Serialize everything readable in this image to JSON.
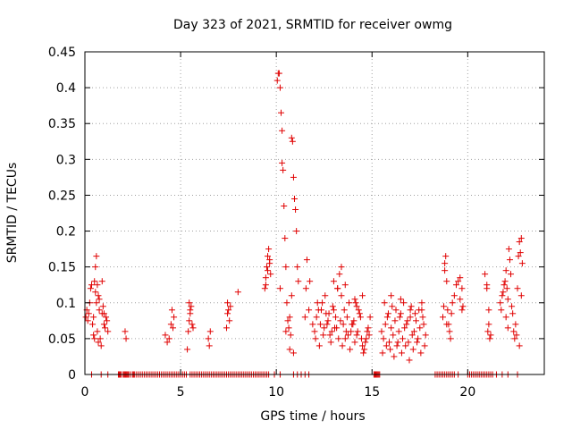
{
  "chart_data": {
    "type": "scatter",
    "title": "Day 323 of 2021, SRMTID for receiver owmg",
    "xlabel": "GPS time / hours",
    "ylabel": "SRMTID / TECUs",
    "xlim": [
      0,
      24
    ],
    "ylim": [
      0,
      0.45
    ],
    "xticks": [
      0,
      5,
      10,
      15,
      20
    ],
    "xtick_labels": [
      "0",
      "5",
      "10",
      "15",
      "20"
    ],
    "yticks": [
      0,
      0.05,
      0.1,
      0.15,
      0.2,
      0.25,
      0.3,
      0.35,
      0.4,
      0.45
    ],
    "ytick_labels": [
      "0",
      "0.05",
      "0.1",
      "0.15",
      "0.2",
      "0.25",
      "0.3",
      "0.35",
      "0.4",
      "0.45"
    ],
    "grid": true,
    "marker": "plus",
    "color": "#e00000",
    "series": [
      {
        "name": "SRMTID",
        "x": [
          0.05,
          0.1,
          0.15,
          0.2,
          0.25,
          0.3,
          0.35,
          0.4,
          0.45,
          0.5,
          0.5,
          0.55,
          0.6,
          0.6,
          0.65,
          0.7,
          0.75,
          0.8,
          0.85,
          0.9,
          0.95,
          1.0,
          1.05,
          1.1,
          1.15,
          1.2,
          0.55,
          0.65,
          0.75,
          0.45,
          0.7,
          0.9,
          1.0,
          2.1,
          2.15,
          4.2,
          4.3,
          4.4,
          4.5,
          4.55,
          4.6,
          4.65,
          5.35,
          5.4,
          5.45,
          5.5,
          5.55,
          5.6,
          5.65,
          5.45,
          5.5,
          6.45,
          6.5,
          6.55,
          7.4,
          7.45,
          7.5,
          7.55,
          7.6,
          7.45,
          8.0,
          9.4,
          9.45,
          9.5,
          9.55,
          9.6,
          9.65,
          9.7,
          9.45,
          9.55,
          9.65,
          10.05,
          10.1,
          10.15,
          10.2,
          10.25,
          10.3,
          10.35,
          10.4,
          10.45,
          10.5,
          10.55,
          10.6,
          10.65,
          10.7,
          10.75,
          10.8,
          10.85,
          10.9,
          10.95,
          11.0,
          11.05,
          11.1,
          11.15,
          10.3,
          10.5,
          10.7,
          10.9,
          10.2,
          10.8,
          11.5,
          11.55,
          11.6,
          11.7,
          11.75,
          11.9,
          12.0,
          12.1,
          12.2,
          12.3,
          12.4,
          12.5,
          12.6,
          12.7,
          12.8,
          12.9,
          13.0,
          13.1,
          13.2,
          13.3,
          13.4,
          13.5,
          13.6,
          13.7,
          13.8,
          13.9,
          14.0,
          14.1,
          14.2,
          14.3,
          14.4,
          14.5,
          14.6,
          14.7,
          14.8,
          14.9,
          12.05,
          12.25,
          12.45,
          12.65,
          12.85,
          13.05,
          13.25,
          13.45,
          13.65,
          13.85,
          14.05,
          14.25,
          14.45,
          14.65,
          14.85,
          12.15,
          12.35,
          12.55,
          12.75,
          12.95,
          13.15,
          13.35,
          13.55,
          13.75,
          13.95,
          14.15,
          14.35,
          14.55,
          14.75,
          13.0,
          13.2,
          13.4,
          13.6,
          14.1,
          14.2,
          14.5,
          15.5,
          15.6,
          15.7,
          15.8,
          15.9,
          16.0,
          16.1,
          16.2,
          16.3,
          16.4,
          16.5,
          16.6,
          16.7,
          16.8,
          16.9,
          17.0,
          17.1,
          17.2,
          17.3,
          17.4,
          17.5,
          17.6,
          17.7,
          17.8,
          15.55,
          15.75,
          15.95,
          16.15,
          16.35,
          16.55,
          16.75,
          16.95,
          17.15,
          17.35,
          17.55,
          17.75,
          15.65,
          15.85,
          16.05,
          16.25,
          16.45,
          16.65,
          16.85,
          17.05,
          17.25,
          17.45,
          17.65,
          16.0,
          16.5,
          17.0,
          17.6,
          18.7,
          18.75,
          18.8,
          18.85,
          18.9,
          18.95,
          19.0,
          19.05,
          19.1,
          19.15,
          19.2,
          19.3,
          19.4,
          19.5,
          19.6,
          19.7,
          19.75,
          18.8,
          18.9,
          19.6,
          19.7,
          20.9,
          21.0,
          21.05,
          21.1,
          21.15,
          21.2,
          21.0,
          21.1,
          21.7,
          21.75,
          21.8,
          21.85,
          21.9,
          21.95,
          22.0,
          22.05,
          22.1,
          22.15,
          22.2,
          22.25,
          22.3,
          22.35,
          22.4,
          22.45,
          22.5,
          22.55,
          22.6,
          22.65,
          22.7,
          22.75,
          22.8,
          22.85,
          22.0,
          22.1,
          22.7,
          22.8
        ],
        "y": [
          0.08,
          0.09,
          0.075,
          0.085,
          0.1,
          0.12,
          0.125,
          0.07,
          0.08,
          0.05,
          0.13,
          0.15,
          0.165,
          0.1,
          0.06,
          0.11,
          0.09,
          0.05,
          0.04,
          0.085,
          0.095,
          0.07,
          0.065,
          0.08,
          0.075,
          0.06,
          0.115,
          0.125,
          0.105,
          0.055,
          0.045,
          0.13,
          0.085,
          0.06,
          0.05,
          0.055,
          0.045,
          0.05,
          0.07,
          0.09,
          0.065,
          0.08,
          0.035,
          0.06,
          0.075,
          0.085,
          0.095,
          0.07,
          0.065,
          0.1,
          0.09,
          0.05,
          0.04,
          0.06,
          0.065,
          0.085,
          0.09,
          0.075,
          0.095,
          0.1,
          0.115,
          0.12,
          0.135,
          0.15,
          0.165,
          0.175,
          0.155,
          0.14,
          0.125,
          0.145,
          0.16,
          0.41,
          0.42,
          0.42,
          0.4,
          0.365,
          0.34,
          0.285,
          0.235,
          0.19,
          0.15,
          0.1,
          0.075,
          0.065,
          0.08,
          0.055,
          0.33,
          0.325,
          0.275,
          0.245,
          0.23,
          0.2,
          0.15,
          0.13,
          0.295,
          0.06,
          0.035,
          0.03,
          0.12,
          0.11,
          0.08,
          0.12,
          0.16,
          0.09,
          0.13,
          0.07,
          0.06,
          0.08,
          0.09,
          0.07,
          0.1,
          0.065,
          0.085,
          0.075,
          0.055,
          0.06,
          0.09,
          0.08,
          0.12,
          0.14,
          0.11,
          0.07,
          0.05,
          0.08,
          0.1,
          0.06,
          0.07,
          0.045,
          0.055,
          0.09,
          0.08,
          0.04,
          0.035,
          0.05,
          0.065,
          0.08,
          0.05,
          0.04,
          0.055,
          0.07,
          0.045,
          0.065,
          0.05,
          0.04,
          0.06,
          0.035,
          0.075,
          0.06,
          0.05,
          0.045,
          0.055,
          0.1,
          0.09,
          0.11,
          0.085,
          0.095,
          0.065,
          0.075,
          0.09,
          0.055,
          0.07,
          0.1,
          0.085,
          0.03,
          0.06,
          0.13,
          0.12,
          0.15,
          0.125,
          0.105,
          0.095,
          0.11,
          0.06,
          0.05,
          0.07,
          0.08,
          0.045,
          0.065,
          0.055,
          0.075,
          0.04,
          0.06,
          0.085,
          0.05,
          0.065,
          0.07,
          0.045,
          0.08,
          0.055,
          0.06,
          0.075,
          0.05,
          0.065,
          0.09,
          0.07,
          0.055,
          0.03,
          0.04,
          0.035,
          0.025,
          0.045,
          0.03,
          0.04,
          0.02,
          0.035,
          0.045,
          0.03,
          0.04,
          0.1,
          0.085,
          0.095,
          0.09,
          0.08,
          0.1,
          0.075,
          0.095,
          0.085,
          0.09,
          0.08,
          0.11,
          0.105,
          0.09,
          0.1,
          0.08,
          0.095,
          0.155,
          0.165,
          0.13,
          0.09,
          0.07,
          0.06,
          0.05,
          0.085,
          0.1,
          0.11,
          0.125,
          0.13,
          0.135,
          0.12,
          0.095,
          0.145,
          0.07,
          0.105,
          0.09,
          0.14,
          0.12,
          0.06,
          0.07,
          0.05,
          0.055,
          0.125,
          0.09,
          0.1,
          0.09,
          0.11,
          0.115,
          0.125,
          0.13,
          0.145,
          0.12,
          0.105,
          0.175,
          0.16,
          0.14,
          0.095,
          0.085,
          0.06,
          0.05,
          0.07,
          0.055,
          0.12,
          0.165,
          0.185,
          0.17,
          0.19,
          0.155,
          0.08,
          0.065,
          0.04,
          0.11
        ],
        "zeros_x": [
          0.35,
          0.85,
          1.2,
          1.75,
          1.8,
          1.85,
          1.9,
          2.0,
          2.05,
          2.1,
          2.15,
          2.2,
          2.25,
          2.3,
          2.4,
          2.5,
          2.55,
          2.6,
          2.7,
          2.8,
          2.9,
          3.0,
          3.1,
          3.2,
          3.3,
          3.4,
          3.5,
          3.6,
          3.7,
          3.8,
          3.9,
          4.0,
          4.1,
          4.2,
          4.3,
          4.4,
          4.5,
          4.6,
          4.7,
          4.8,
          4.9,
          5.0,
          5.1,
          5.2,
          5.3,
          5.5,
          5.6,
          5.7,
          5.8,
          5.9,
          6.0,
          6.1,
          6.2,
          6.3,
          6.4,
          6.5,
          6.6,
          6.7,
          6.8,
          6.9,
          7.0,
          7.1,
          7.2,
          7.3,
          7.4,
          7.5,
          7.6,
          7.7,
          7.8,
          7.9,
          8.0,
          8.1,
          8.2,
          8.3,
          8.4,
          8.5,
          8.6,
          8.7,
          8.8,
          8.9,
          9.0,
          9.1,
          9.2,
          9.3,
          9.4,
          9.5,
          9.6,
          9.9,
          10.2,
          10.9,
          11.1,
          11.3,
          11.5,
          11.7,
          15.1,
          15.15,
          15.2,
          15.25,
          15.3,
          15.35,
          15.4,
          18.3,
          18.4,
          18.5,
          18.6,
          18.7,
          18.8,
          18.9,
          19.0,
          19.1,
          19.2,
          19.3,
          19.5,
          20.0,
          20.1,
          20.2,
          20.3,
          20.4,
          20.5,
          20.6,
          20.7,
          20.8,
          20.9,
          21.0,
          21.1,
          21.2,
          21.3,
          21.5,
          21.8,
          22.1,
          22.6
        ]
      }
    ]
  }
}
